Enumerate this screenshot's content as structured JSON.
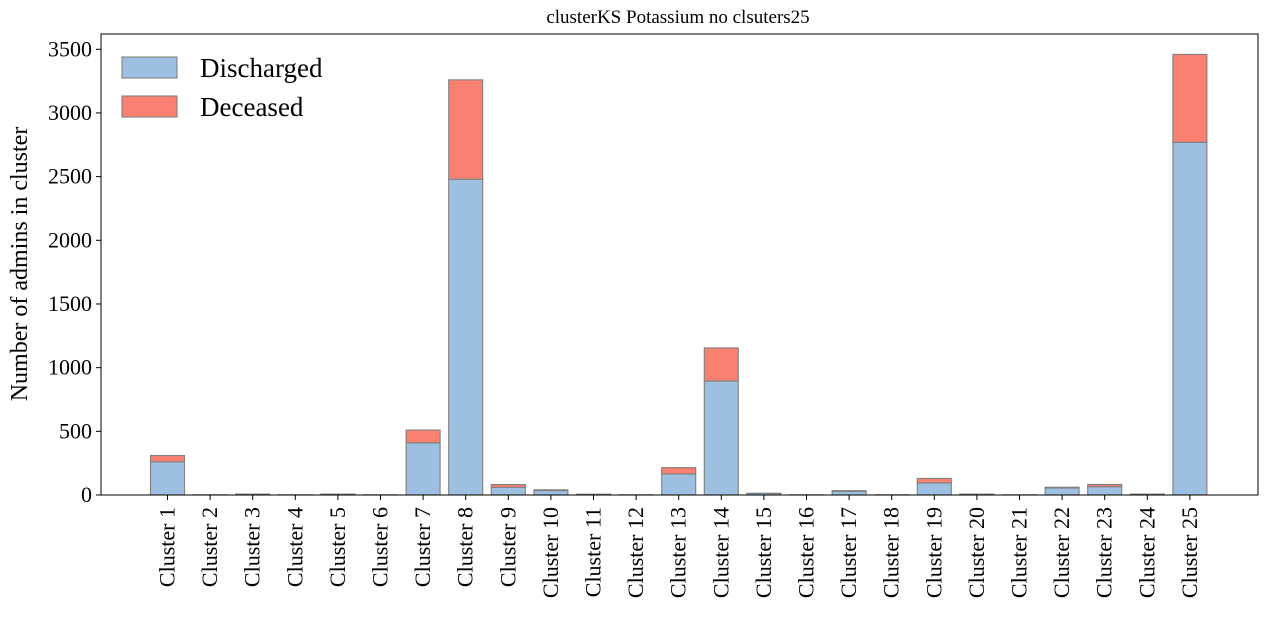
{
  "chart_data": {
    "type": "bar",
    "stacked": true,
    "title": "clusterKS Potassium no clsuters25",
    "xlabel": "",
    "ylabel": "Number of admins in cluster",
    "ylim": [
      0,
      3620
    ],
    "yticks": [
      0,
      500,
      1000,
      1500,
      2000,
      2500,
      3000,
      3500
    ],
    "grid": false,
    "legend_position": "top-left",
    "categories": [
      "Cluster 1",
      "Cluster 2",
      "Cluster 3",
      "Cluster 4",
      "Cluster 5",
      "Cluster 6",
      "Cluster 7",
      "Cluster 8",
      "Cluster 9",
      "Cluster 10",
      "Cluster 11",
      "Cluster 12",
      "Cluster 13",
      "Cluster 14",
      "Cluster 15",
      "Cluster 16",
      "Cluster 17",
      "Cluster 18",
      "Cluster 19",
      "Cluster 20",
      "Cluster 21",
      "Cluster 22",
      "Cluster 23",
      "Cluster 24",
      "Cluster 25"
    ],
    "series": [
      {
        "name": "Discharged",
        "color": "#9dc0e0",
        "values": [
          260,
          2,
          6,
          2,
          6,
          2,
          410,
          2480,
          60,
          35,
          5,
          2,
          165,
          895,
          12,
          2,
          28,
          2,
          95,
          6,
          2,
          55,
          65,
          6,
          2770
        ]
      },
      {
        "name": "Deceased",
        "color": "#fa8072",
        "values": [
          50,
          0,
          1,
          0,
          1,
          0,
          100,
          780,
          22,
          6,
          1,
          0,
          50,
          260,
          2,
          0,
          6,
          0,
          35,
          1,
          0,
          6,
          18,
          1,
          690
        ]
      }
    ]
  }
}
